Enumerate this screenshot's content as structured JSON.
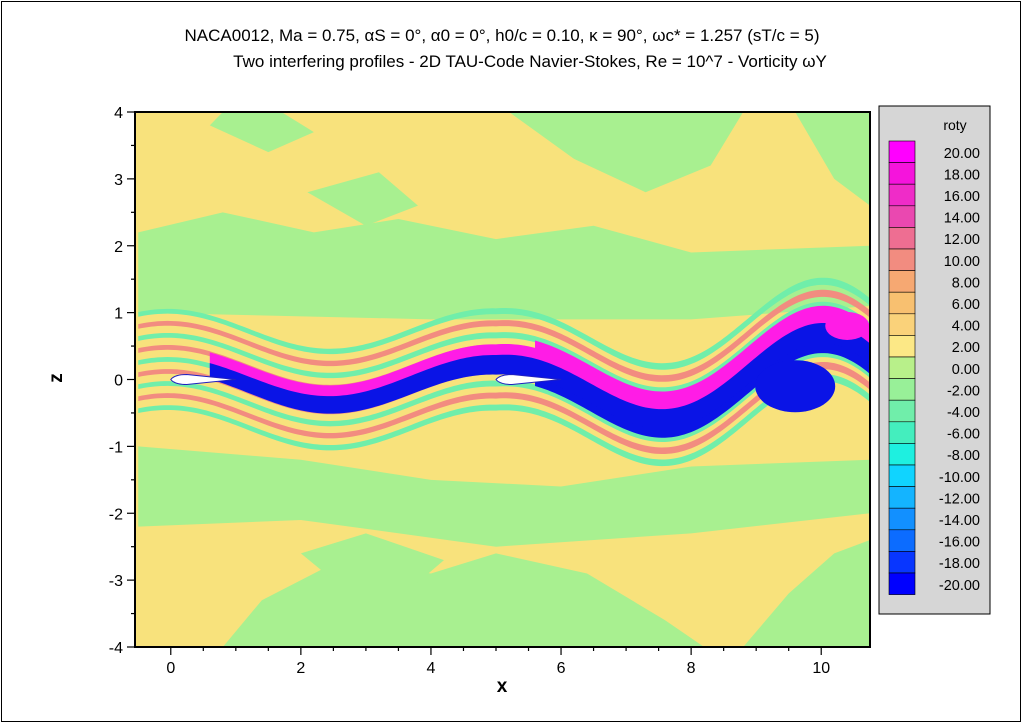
{
  "chart_data": {
    "type": "heatmap",
    "title": "NACA0012, Ma = 0.75, αS = 0°, α0 = 0°,  h0/c = 0.10,  κ = 90°, ωc* = 1.257 (sT/c = 5)",
    "subtitle": "Two interfering profiles - 2D TAU-Code Navier-Stokes, Re = 10^7  - Vorticity ωY",
    "xlabel": "x",
    "ylabel": "z",
    "xlim": [
      -0.55,
      10.75
    ],
    "ylim": [
      -4,
      4
    ],
    "x_ticks": [
      0,
      2,
      4,
      6,
      8,
      10
    ],
    "y_ticks": [
      4,
      3,
      2,
      1,
      0,
      -1,
      -2,
      -3,
      -4
    ],
    "legend": {
      "title": "roty",
      "placement": "right",
      "levels": [
        "20.00",
        "18.00",
        "16.00",
        "14.00",
        "12.00",
        "10.00",
        "8.00",
        "6.00",
        "4.00",
        "2.00",
        "0.00",
        "-2.00",
        "-4.00",
        "-6.00",
        "-8.00",
        "-10.00",
        "-12.00",
        "-14.00",
        "-16.00",
        "-18.00",
        "-20.00"
      ],
      "colors": [
        "#ff00ff",
        "#f514dc",
        "#ef2cc8",
        "#ea48b0",
        "#ee6e92",
        "#f28c80",
        "#f6a872",
        "#f8c070",
        "#fad27a",
        "#fce886",
        "#b8f08a",
        "#98f098",
        "#70eeaa",
        "#44eebe",
        "#1ef0e0",
        "#10d4ff",
        "#14b4ff",
        "#1290ff",
        "#0c6cff",
        "#0836ff",
        "#0000ff"
      ]
    },
    "profiles": [
      {
        "name": "profile-1",
        "x_start": 0,
        "x_end": 1,
        "z": 0
      },
      {
        "name": "profile-2",
        "x_start": 5,
        "x_end": 6,
        "z": 0
      }
    ],
    "background_color": "#f8e27c",
    "wake_colors": {
      "positive": "#ff1ce6",
      "negative": "#0a14e6"
    }
  }
}
